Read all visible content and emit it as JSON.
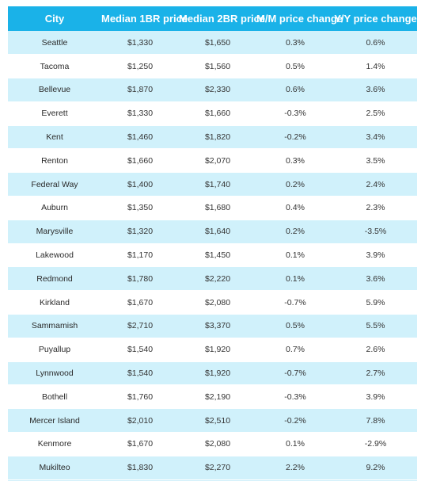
{
  "table": {
    "headers": [
      "City",
      "Median 1BR price",
      "Median 2BR price",
      "M/M price change",
      "Y/Y price change"
    ],
    "rows": [
      [
        "Seattle",
        "$1,330",
        "$1,650",
        "0.3%",
        "0.6%"
      ],
      [
        "Tacoma",
        "$1,250",
        "$1,560",
        "0.5%",
        "1.4%"
      ],
      [
        "Bellevue",
        "$1,870",
        "$2,330",
        "0.6%",
        "3.6%"
      ],
      [
        "Everett",
        "$1,330",
        "$1,660",
        "-0.3%",
        "2.5%"
      ],
      [
        "Kent",
        "$1,460",
        "$1,820",
        "-0.2%",
        "3.4%"
      ],
      [
        "Renton",
        "$1,660",
        "$2,070",
        "0.3%",
        "3.5%"
      ],
      [
        "Federal Way",
        "$1,400",
        "$1,740",
        "0.2%",
        "2.4%"
      ],
      [
        "Auburn",
        "$1,350",
        "$1,680",
        "0.4%",
        "2.3%"
      ],
      [
        "Marysville",
        "$1,320",
        "$1,640",
        "0.2%",
        "-3.5%"
      ],
      [
        "Lakewood",
        "$1,170",
        "$1,450",
        "0.1%",
        "3.9%"
      ],
      [
        "Redmond",
        "$1,780",
        "$2,220",
        "0.1%",
        "3.6%"
      ],
      [
        "Kirkland",
        "$1,670",
        "$2,080",
        "-0.7%",
        "5.9%"
      ],
      [
        "Sammamish",
        "$2,710",
        "$3,370",
        "0.5%",
        "5.5%"
      ],
      [
        "Puyallup",
        "$1,540",
        "$1,920",
        "0.7%",
        "2.6%"
      ],
      [
        "Lynnwood",
        "$1,540",
        "$1,920",
        "-0.7%",
        "2.7%"
      ],
      [
        "Bothell",
        "$1,760",
        "$2,190",
        "-0.3%",
        "3.9%"
      ],
      [
        "Mercer Island",
        "$2,010",
        "$2,510",
        "-0.2%",
        "7.8%"
      ],
      [
        "Kenmore",
        "$1,670",
        "$2,080",
        "0.1%",
        "-2.9%"
      ],
      [
        "Mukilteo",
        "$1,830",
        "$2,270",
        "2.2%",
        "9.2%"
      ]
    ]
  },
  "colors": {
    "header_bg": "#1ab2e8",
    "header_text": "#ffffff",
    "row_alt_bg": "#d0f1fb",
    "row_bg": "#ffffff"
  }
}
